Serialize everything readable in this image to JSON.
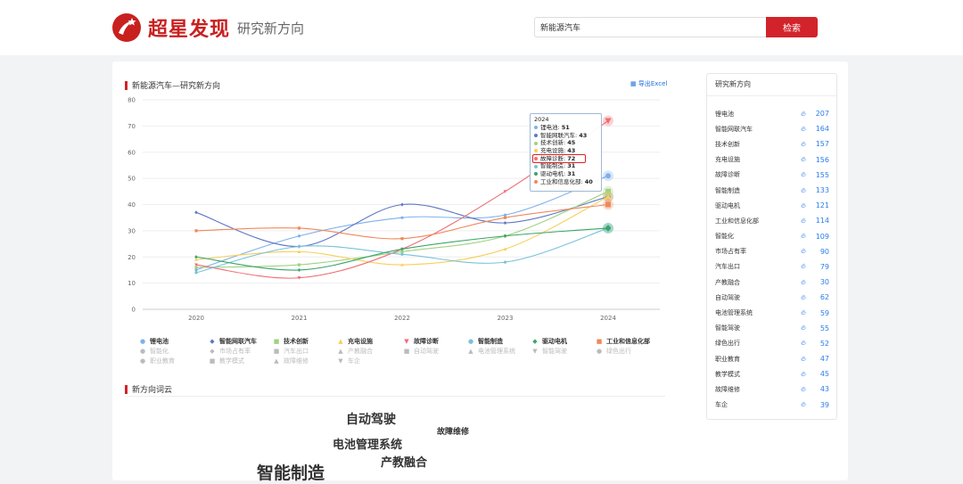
{
  "header": {
    "logo_text": "超星发现",
    "subtitle": "研究新方向",
    "search_value": "新能源汽车",
    "search_button": "检索"
  },
  "chart_panel": {
    "title": "新能源汽车—研究新方向",
    "export_label": "导出Excel"
  },
  "chart_data": {
    "type": "line",
    "title": "新能源汽车—研究新方向",
    "x": [
      "2020",
      "2021",
      "2022",
      "2023",
      "2024"
    ],
    "ylim": [
      0,
      80
    ],
    "yticks": [
      "0",
      "10",
      "20",
      "30",
      "40",
      "50",
      "60",
      "70",
      "80"
    ],
    "series": [
      {
        "name": "锂电池",
        "color": "#7eb1ea",
        "marker": "circle",
        "values": [
          15,
          28,
          35,
          36,
          51
        ]
      },
      {
        "name": "智能网联汽车",
        "color": "#5f78c4",
        "marker": "diamond",
        "values": [
          37,
          24,
          40,
          33,
          43
        ]
      },
      {
        "name": "技术创新",
        "color": "#9ed27f",
        "marker": "square",
        "values": [
          16,
          17,
          22,
          28,
          45
        ]
      },
      {
        "name": "充电设施",
        "color": "#f8cf5a",
        "marker": "triangle",
        "values": [
          19,
          22,
          17,
          23,
          43
        ]
      },
      {
        "name": "故障诊断",
        "color": "#ee6e73",
        "marker": "triangle-down",
        "values": [
          17,
          12,
          23,
          45,
          72
        ]
      },
      {
        "name": "智能制造",
        "color": "#78c2dc",
        "marker": "circle",
        "values": [
          14,
          24,
          21,
          18,
          31
        ]
      },
      {
        "name": "驱动电机",
        "color": "#3aa46a",
        "marker": "diamond",
        "values": [
          20,
          15,
          23,
          28,
          31
        ]
      },
      {
        "name": "工业和信息化部",
        "color": "#f0885a",
        "marker": "square",
        "values": [
          30,
          31,
          27,
          35,
          40
        ]
      }
    ]
  },
  "legend_inactive": [
    {
      "name": "智能化",
      "marker": "circle"
    },
    {
      "name": "市场占有率",
      "marker": "diamond"
    },
    {
      "name": "汽车出口",
      "marker": "square"
    },
    {
      "name": "产教融合",
      "marker": "triangle"
    },
    {
      "name": "自动驾驶",
      "marker": "square"
    },
    {
      "name": "电池管理系统",
      "marker": "triangle"
    },
    {
      "name": "智能驾驶",
      "marker": "triangle-down"
    },
    {
      "name": "绿色出行",
      "marker": "circle"
    },
    {
      "name": "职业教育",
      "marker": "circle"
    },
    {
      "name": "教学模式",
      "marker": "square"
    },
    {
      "name": "故障维修",
      "marker": "triangle"
    },
    {
      "name": "车企",
      "marker": "triangle-down"
    }
  ],
  "tooltip": {
    "year": "2024",
    "rows": [
      {
        "name": "锂电池",
        "value": "51"
      },
      {
        "name": "智能网联汽车",
        "value": "43"
      },
      {
        "name": "技术创新",
        "value": "45"
      },
      {
        "name": "充电设施",
        "value": "43"
      },
      {
        "name": "故障诊断",
        "value": "72"
      },
      {
        "name": "智能制造",
        "value": "31"
      },
      {
        "name": "驱动电机",
        "value": "31"
      },
      {
        "name": "工业和信息化部",
        "value": "40"
      }
    ]
  },
  "wordcloud": {
    "title": "新方向词云",
    "words": [
      {
        "text": "自动驾驶",
        "color": "#e8931a"
      },
      {
        "text": "故障维修",
        "color": "#3cc7c0"
      },
      {
        "text": "电池管理系统",
        "color": "#b69ae6"
      },
      {
        "text": "产教融合",
        "color": "#ee6e73"
      },
      {
        "text": "智能制造",
        "color": "#a9d18e"
      }
    ]
  },
  "sidebar": {
    "title": "研究新方向",
    "items": [
      {
        "name": "锂电池",
        "count": "207"
      },
      {
        "name": "智能网联汽车",
        "count": "164"
      },
      {
        "name": "技术创新",
        "count": "157"
      },
      {
        "name": "充电设施",
        "count": "156"
      },
      {
        "name": "故障诊断",
        "count": "155"
      },
      {
        "name": "智能制造",
        "count": "133"
      },
      {
        "name": "驱动电机",
        "count": "121"
      },
      {
        "name": "工业和信息化部",
        "count": "114"
      },
      {
        "name": "智能化",
        "count": "109"
      },
      {
        "name": "市场占有率",
        "count": "90"
      },
      {
        "name": "汽车出口",
        "count": "79"
      },
      {
        "name": "产教融合",
        "count": "30"
      },
      {
        "name": "自动驾驶",
        "count": "62"
      },
      {
        "name": "电池管理系统",
        "count": "59"
      },
      {
        "name": "智能驾驶",
        "count": "55"
      },
      {
        "name": "绿色出行",
        "count": "52"
      },
      {
        "name": "职业教育",
        "count": "47"
      },
      {
        "name": "教学模式",
        "count": "45"
      },
      {
        "name": "故障维修",
        "count": "43"
      },
      {
        "name": "车企",
        "count": "39"
      }
    ]
  }
}
